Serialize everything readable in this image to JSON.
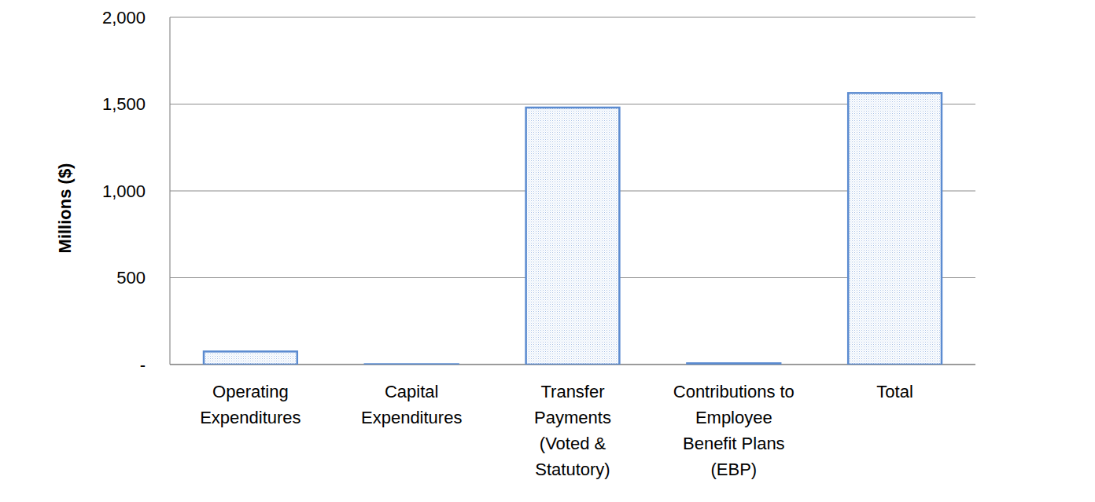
{
  "chart_data": {
    "type": "bar",
    "y_label": "Millions ($)",
    "categories": [
      "Operating\nExpenditures",
      "Capital\nExpenditures",
      "Transfer\nPayments\n(Voted &\nStatutory)",
      "Contributions to\nEmployee\nBenefit Plans\n(EBP)",
      "Total"
    ],
    "values": [
      75,
      2,
      1480,
      7,
      1564
    ],
    "color": "#5b8bd0",
    "ylim": [
      0,
      2000
    ],
    "yticks": [
      {
        "value": 0,
        "label": "-"
      },
      500,
      {
        "value": 1000,
        "label": "1,000"
      },
      {
        "value": 1500,
        "label": "1,500"
      },
      {
        "value": 2000,
        "label": "2,000"
      }
    ],
    "grid": true
  }
}
